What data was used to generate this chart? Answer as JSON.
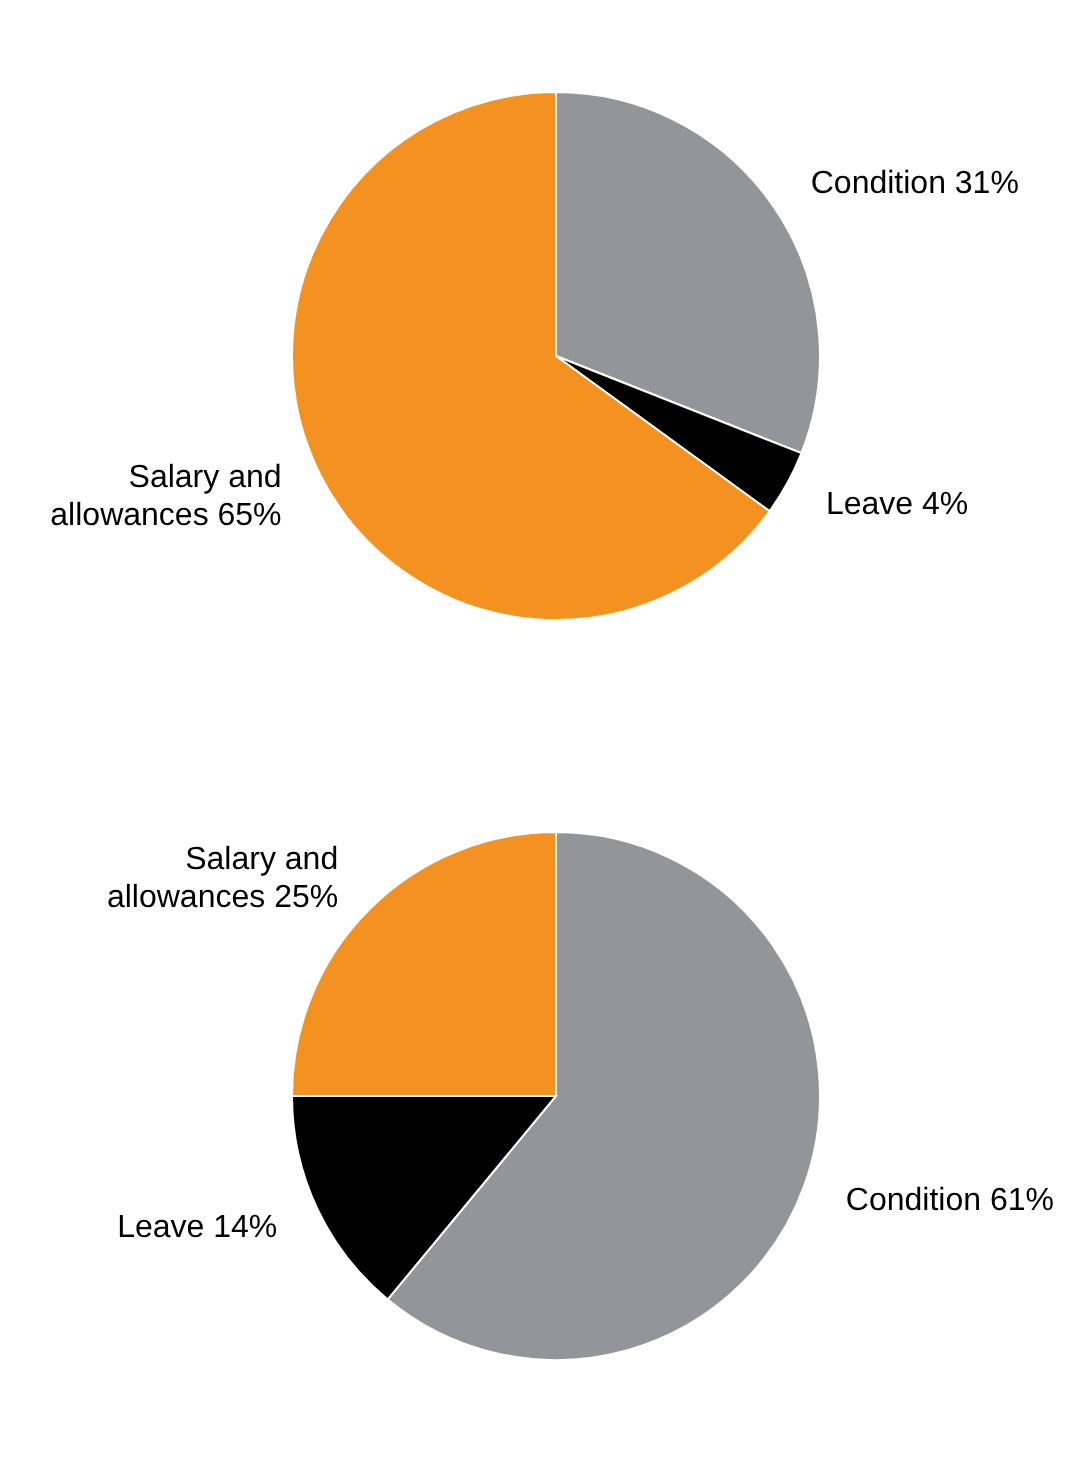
{
  "chart_data": [
    {
      "type": "pie",
      "categories": [
        "Condition",
        "Leave",
        "Salary and allowances"
      ],
      "values": [
        31,
        4,
        65
      ],
      "colors": [
        "#939598",
        "#000000",
        "#f39220"
      ],
      "value_labels": [
        "31%",
        "4%",
        "65%"
      ]
    },
    {
      "type": "pie",
      "categories": [
        "Condition",
        "Leave",
        "Salary and allowances"
      ],
      "values": [
        61,
        14,
        25
      ],
      "colors": [
        "#939598",
        "#000000",
        "#f39220"
      ],
      "value_labels": [
        "61%",
        "14%",
        "25%"
      ]
    }
  ]
}
